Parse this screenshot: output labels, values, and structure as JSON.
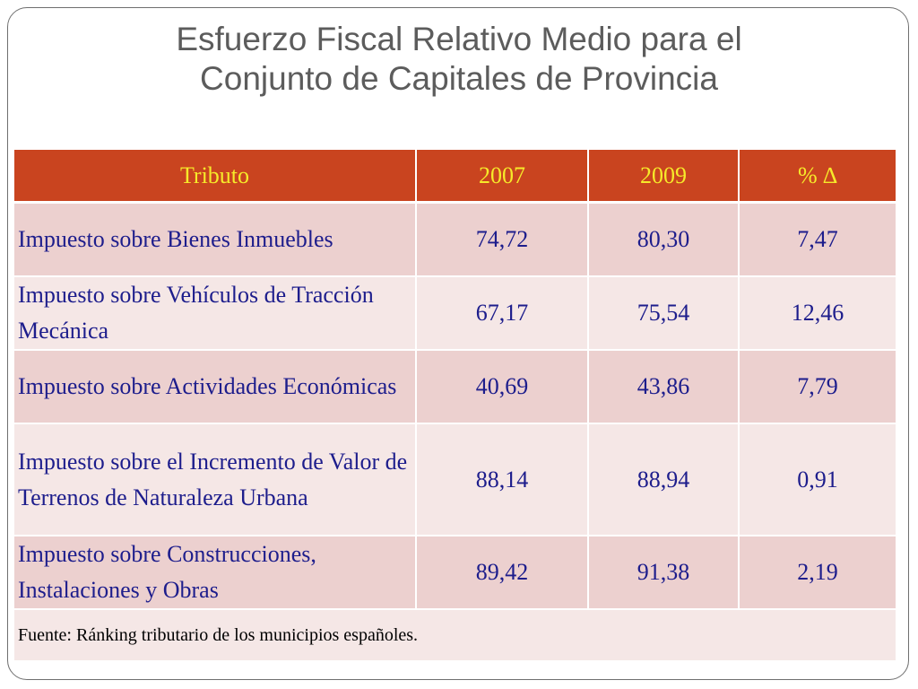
{
  "title": {
    "line1": "Esfuerzo Fiscal Relativo Medio para el",
    "line2": "Conjunto de Capitales de Provincia"
  },
  "table": {
    "headers": {
      "tributo": "Tributo",
      "year_2007": "2007",
      "year_2009": "2009",
      "pct_change": "% ∆"
    },
    "rows": [
      {
        "tributo": "Impuesto sobre Bienes Inmuebles",
        "v2007": "74,72",
        "v2009": "80,30",
        "pct": "7,47"
      },
      {
        "tributo": "Impuesto sobre Vehículos de Tracción Mecánica",
        "v2007": "67,17",
        "v2009": "75,54",
        "pct": "12,46"
      },
      {
        "tributo": "Impuesto sobre Actividades Económicas",
        "v2007": "40,69",
        "v2009": "43,86",
        "pct": "7,79"
      },
      {
        "tributo": "Impuesto sobre el Incremento de Valor de Terrenos de Naturaleza Urbana",
        "v2007": "88,14",
        "v2009": "88,94",
        "pct": "0,91"
      },
      {
        "tributo": "Impuesto sobre Construcciones, Instalaciones y Obras",
        "v2007": "89,42",
        "v2009": "91,38",
        "pct": "2,19"
      }
    ],
    "source": "Fuente: Ránking tributario de los municipios españoles."
  },
  "colors": {
    "header_bg": "#c9441f",
    "header_text": "#f6ea2a",
    "row_odd_bg": "#ecd0cf",
    "row_even_bg": "#f5e7e6",
    "body_text": "#1d1d8c",
    "title_text": "#5c5c5c"
  }
}
